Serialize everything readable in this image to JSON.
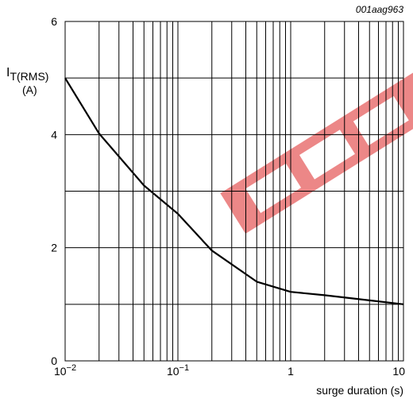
{
  "chart_data": {
    "type": "line",
    "code": "001aag963",
    "ylabel_main": "I",
    "ylabel_sub": "T(RMS)",
    "ylabel_unit": "(A)",
    "xlabel": "surge duration (s)",
    "xscale": "log",
    "xlim": [
      0.01,
      10
    ],
    "ylim": [
      0,
      6
    ],
    "grid": true,
    "ytick_values": [
      0,
      2,
      4,
      6
    ],
    "ytick_labels": [
      "0",
      "2",
      "4",
      "6"
    ],
    "xtick_labels": [
      {
        "value": 0.01,
        "base": "10",
        "exp": "−2"
      },
      {
        "value": 0.1,
        "base": "10",
        "exp": "−1"
      },
      {
        "value": 1,
        "base": "1",
        "exp": ""
      },
      {
        "value": 10,
        "base": "10",
        "exp": ""
      }
    ],
    "series": [
      {
        "x": [
          0.01,
          0.02,
          0.05,
          0.1,
          0.2,
          0.5,
          1,
          2,
          5,
          10
        ],
        "y": [
          5.0,
          4.02,
          3.1,
          2.6,
          1.95,
          1.4,
          1.22,
          1.16,
          1.07,
          1.0
        ]
      }
    ],
    "colors": {
      "line": "#000000",
      "grid": "#000000",
      "watermark": "#e23a3a"
    }
  }
}
